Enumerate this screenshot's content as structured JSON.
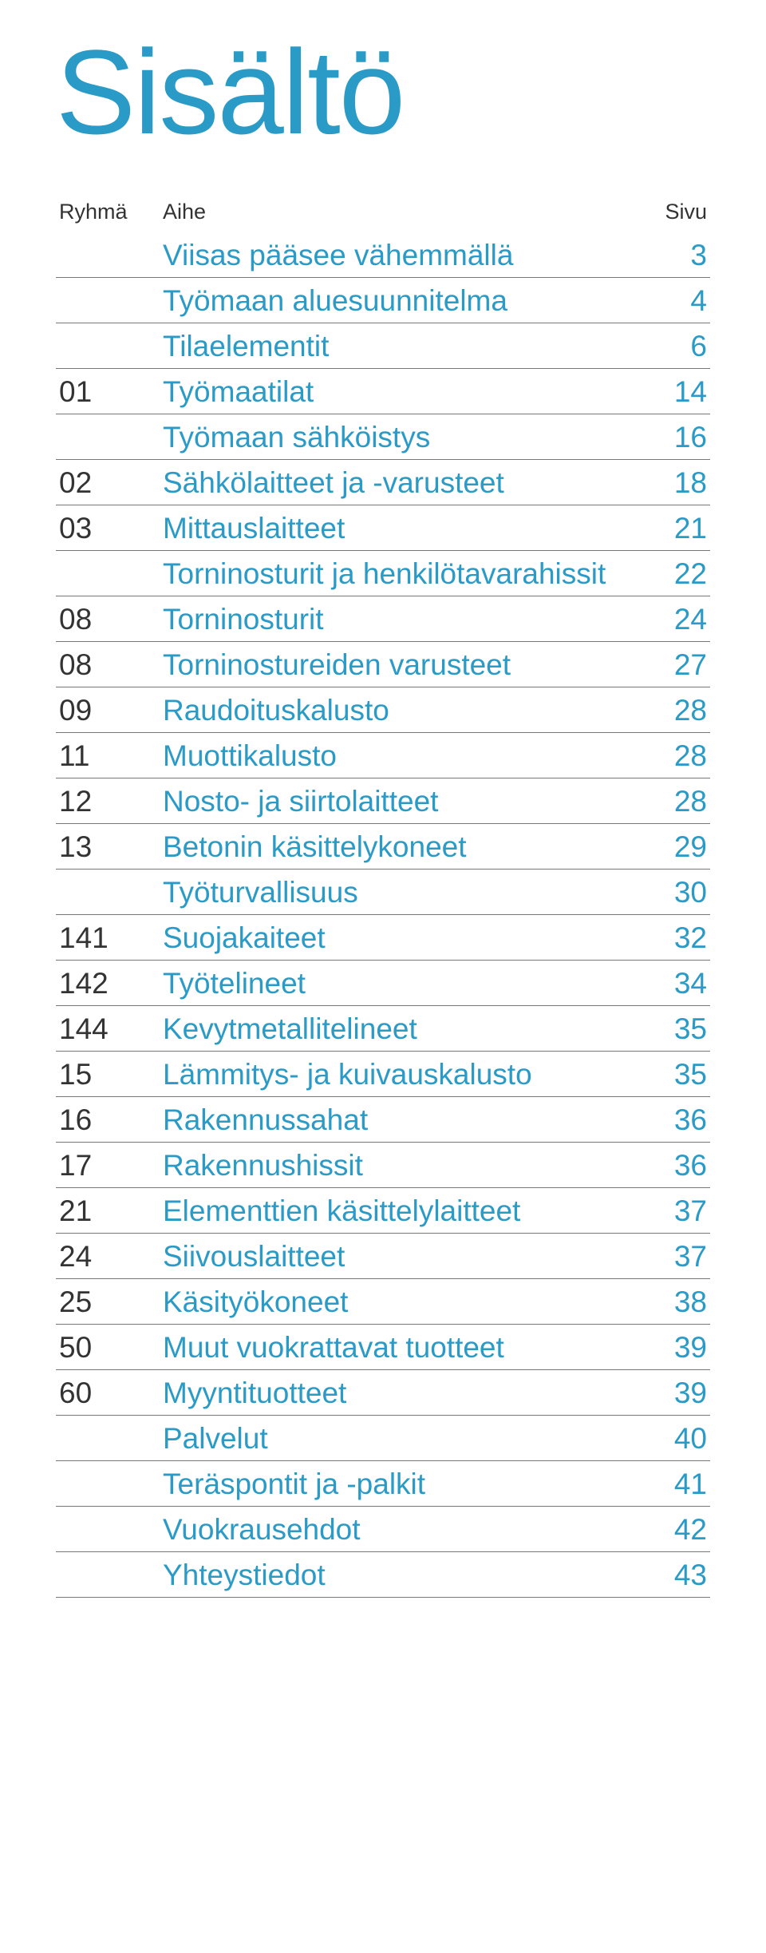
{
  "title": "Sisältö",
  "title_color": "#2a9ac7",
  "title_fontsize": 150,
  "header": {
    "ryhma": "Ryhmä",
    "aihe": "Aihe",
    "sivu": "Sivu",
    "fontsize": 27,
    "color": "#333333"
  },
  "row_style": {
    "accent_color": "#2a9ac7",
    "ryhma_color": "#333333",
    "border_color": "#777777",
    "border_width": 1,
    "fontsize": 37,
    "font_weight": 300
  },
  "rows": [
    {
      "ryhma": "",
      "aihe": "Viisas pääsee vähemmällä",
      "sivu": "3"
    },
    {
      "ryhma": "",
      "aihe": "Työmaan aluesuunnitelma",
      "sivu": "4"
    },
    {
      "ryhma": "",
      "aihe": "Tilaelementit",
      "sivu": "6"
    },
    {
      "ryhma": "01",
      "aihe": "Työmaatilat",
      "sivu": "14"
    },
    {
      "ryhma": "",
      "aihe": "Työmaan sähköistys",
      "sivu": "16"
    },
    {
      "ryhma": "02",
      "aihe": "Sähkölaitteet ja -varusteet",
      "sivu": "18"
    },
    {
      "ryhma": "03",
      "aihe": "Mittauslaitteet",
      "sivu": "21"
    },
    {
      "ryhma": "",
      "aihe": "Torninosturit ja henkilötavarahissit",
      "sivu": "22"
    },
    {
      "ryhma": "08",
      "aihe": "Torninosturit",
      "sivu": "24"
    },
    {
      "ryhma": "08",
      "aihe": "Torninostureiden varusteet",
      "sivu": "27"
    },
    {
      "ryhma": "09",
      "aihe": "Raudoituskalusto",
      "sivu": "28"
    },
    {
      "ryhma": "11",
      "aihe": "Muottikalusto",
      "sivu": "28"
    },
    {
      "ryhma": "12",
      "aihe": "Nosto- ja siirtolaitteet",
      "sivu": "28"
    },
    {
      "ryhma": "13",
      "aihe": "Betonin käsittelykoneet",
      "sivu": "29"
    },
    {
      "ryhma": "",
      "aihe": "Työturvallisuus",
      "sivu": "30"
    },
    {
      "ryhma": "141",
      "aihe": "Suojakaiteet",
      "sivu": "32"
    },
    {
      "ryhma": "142",
      "aihe": "Työtelineet",
      "sivu": "34"
    },
    {
      "ryhma": "144",
      "aihe": "Kevytmetallitelineet",
      "sivu": "35"
    },
    {
      "ryhma": "15",
      "aihe": "Lämmitys- ja kuivauskalusto",
      "sivu": "35"
    },
    {
      "ryhma": "16",
      "aihe": "Rakennussahat",
      "sivu": "36"
    },
    {
      "ryhma": "17",
      "aihe": "Rakennushissit",
      "sivu": "36"
    },
    {
      "ryhma": "21",
      "aihe": "Elementtien käsittelylaitteet",
      "sivu": "37"
    },
    {
      "ryhma": "24",
      "aihe": "Siivouslaitteet",
      "sivu": "37"
    },
    {
      "ryhma": "25",
      "aihe": "Käsityökoneet",
      "sivu": "38"
    },
    {
      "ryhma": "50",
      "aihe": "Muut vuokrattavat tuotteet",
      "sivu": "39"
    },
    {
      "ryhma": "60",
      "aihe": "Myyntituotteet",
      "sivu": "39"
    },
    {
      "ryhma": "",
      "aihe": "Palvelut",
      "sivu": "40"
    },
    {
      "ryhma": "",
      "aihe": "Teräspontit ja -palkit",
      "sivu": "41"
    },
    {
      "ryhma": "",
      "aihe": "Vuokrausehdot",
      "sivu": "42"
    },
    {
      "ryhma": "",
      "aihe": "Yhteystiedot",
      "sivu": "43"
    }
  ]
}
